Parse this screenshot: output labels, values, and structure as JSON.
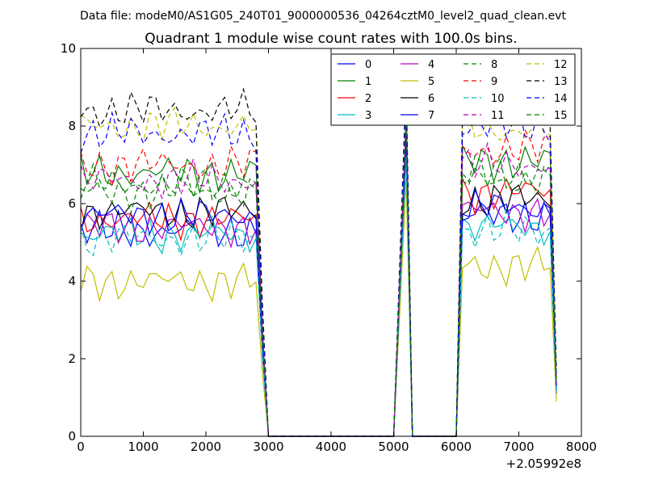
{
  "figure": {
    "suptitle": "Data file: modeM0/AS1G05_240T01_9000000536_04264cztM0_level2_quad_clean.evt"
  },
  "chart_data": {
    "type": "line",
    "title": "Quadrant 1 module wise count rates with 100.0s bins.",
    "xlabel": "",
    "ylabel": "",
    "x_offset_label": "+2.05992e8",
    "xlim": [
      0,
      8000
    ],
    "ylim": [
      0,
      10
    ],
    "xticks": [
      0,
      1000,
      2000,
      3000,
      4000,
      5000,
      6000,
      7000,
      8000
    ],
    "yticks": [
      0,
      2,
      4,
      6,
      8,
      10
    ],
    "grid": false,
    "legend_placement": "top-right",
    "legend_columns": 4,
    "x_segments": [
      {
        "start": 0,
        "end": 2800,
        "step": 100,
        "kind": "active"
      },
      {
        "points": [
          [
            2900,
            2.5
          ],
          [
            3000,
            0
          ]
        ],
        "kind": "decline"
      },
      {
        "points": [
          [
            3000,
            0
          ],
          [
            4000,
            0
          ],
          [
            5000,
            0
          ]
        ],
        "kind": "zero"
      },
      {
        "points": [
          [
            5000,
            0
          ],
          [
            5200,
            8.8
          ],
          [
            5300,
            0
          ]
        ],
        "kind": "spike"
      },
      {
        "points": [
          [
            5300,
            0
          ],
          [
            6000,
            0
          ]
        ],
        "kind": "zero"
      },
      {
        "start": 6000,
        "end": 7500,
        "step": 100,
        "kind": "active"
      },
      {
        "points": [
          [
            7600,
            1.0
          ]
        ],
        "kind": "tail"
      }
    ],
    "series": [
      {
        "name": "0",
        "color": "#0000ff",
        "dash": "solid",
        "base1": 5.3,
        "base2": 5.7,
        "spike": 7.5,
        "tail": 1.1
      },
      {
        "name": "1",
        "color": "#008000",
        "dash": "solid",
        "base1": 6.8,
        "base2": 7.1,
        "spike": 8.1,
        "tail": 1.4
      },
      {
        "name": "2",
        "color": "#ff0000",
        "dash": "solid",
        "base1": 5.6,
        "base2": 6.3,
        "spike": 7.8,
        "tail": 1.3
      },
      {
        "name": "3",
        "color": "#00bfbf",
        "dash": "solid",
        "base1": 5.2,
        "base2": 5.4,
        "spike": 7.3,
        "tail": 1.2
      },
      {
        "name": "4",
        "color": "#bf00bf",
        "dash": "solid",
        "base1": 5.4,
        "base2": 5.8,
        "spike": 7.6,
        "tail": 1.2
      },
      {
        "name": "5",
        "color": "#bfbf00",
        "dash": "solid",
        "base1": 4.0,
        "base2": 4.4,
        "spike": 6.6,
        "tail": 0.9
      },
      {
        "name": "6",
        "color": "#000000",
        "dash": "solid",
        "base1": 5.8,
        "base2": 6.1,
        "spike": 7.9,
        "tail": 1.3
      },
      {
        "name": "7",
        "color": "#0000ff",
        "dash": "solid",
        "base1": 5.7,
        "base2": 5.9,
        "spike": 7.7,
        "tail": 1.2
      },
      {
        "name": "8",
        "color": "#008000",
        "dash": "dashed",
        "base1": 6.3,
        "base2": 6.6,
        "spike": 8.3,
        "tail": 1.4
      },
      {
        "name": "9",
        "color": "#ff0000",
        "dash": "dashed",
        "base1": 7.0,
        "base2": 7.4,
        "spike": 8.6,
        "tail": 1.5
      },
      {
        "name": "10",
        "color": "#00bfbf",
        "dash": "dashed",
        "base1": 5.1,
        "base2": 5.3,
        "spike": 7.2,
        "tail": 1.1
      },
      {
        "name": "11",
        "color": "#bf00bf",
        "dash": "dashed",
        "base1": 6.6,
        "base2": 7.0,
        "spike": 8.2,
        "tail": 1.4
      },
      {
        "name": "12",
        "color": "#bfbf00",
        "dash": "dashed",
        "base1": 8.0,
        "base2": 7.9,
        "spike": 8.9,
        "tail": 1.6
      },
      {
        "name": "13",
        "color": "#000000",
        "dash": "dashed",
        "base1": 8.4,
        "base2": 8.4,
        "spike": 9.2,
        "tail": 1.7
      },
      {
        "name": "14",
        "color": "#0000ff",
        "dash": "dashed",
        "base1": 7.8,
        "base2": 8.0,
        "spike": 8.8,
        "tail": 1.6
      },
      {
        "name": "15",
        "color": "#008000",
        "dash": "dashed",
        "base1": 6.5,
        "base2": 6.8,
        "spike": 8.2,
        "tail": 1.4
      }
    ]
  }
}
